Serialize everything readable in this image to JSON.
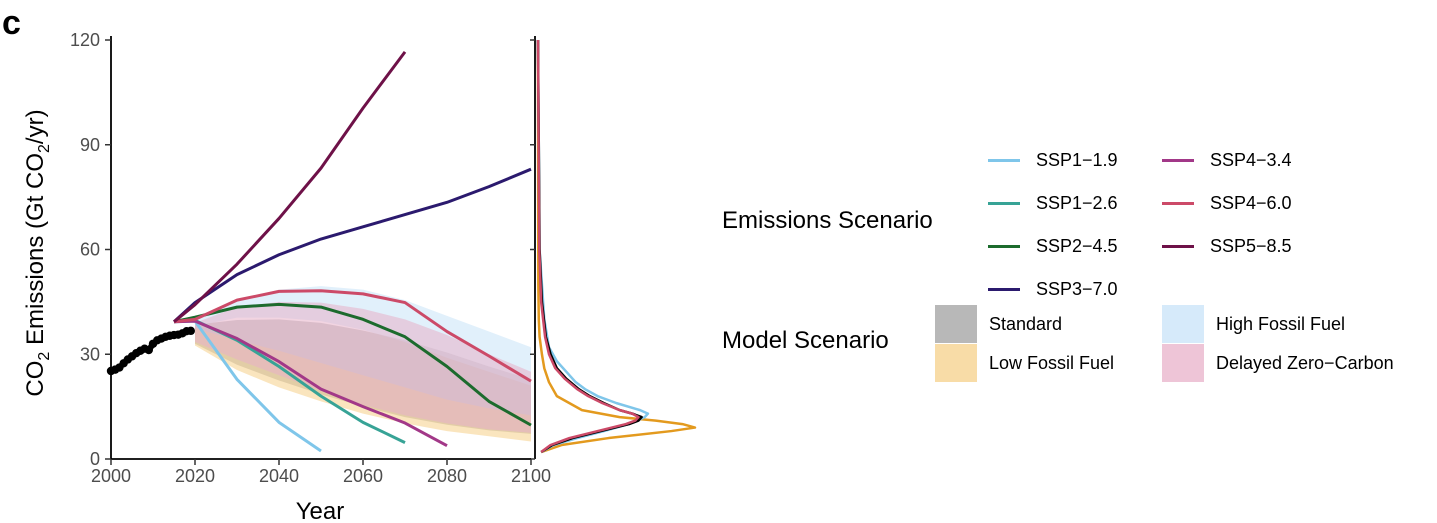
{
  "panel_label": "c",
  "chart_data": {
    "type": "line",
    "title": "",
    "xlabel": "Year",
    "ylabel_main": "CO",
    "ylabel_sub": "2",
    "ylabel_rest": " Emissions (Gt CO",
    "ylabel_unit_sub": "2",
    "ylabel_end": "/yr)",
    "xlim": [
      2000,
      2100
    ],
    "ylim": [
      0,
      120
    ],
    "x_ticks": [
      2000,
      2020,
      2040,
      2060,
      2080,
      2100
    ],
    "y_ticks": [
      0,
      30,
      60,
      90,
      120
    ],
    "grid": false,
    "legend_position": "right",
    "historical": {
      "name": "Historical",
      "color": "#000000",
      "x": [
        2000,
        2001,
        2002,
        2003,
        2004,
        2005,
        2006,
        2007,
        2008,
        2009,
        2010,
        2011,
        2012,
        2013,
        2014,
        2015,
        2016,
        2017,
        2018,
        2019
      ],
      "y": [
        25.2,
        25.6,
        26.2,
        27.4,
        28.5,
        29.4,
        30.3,
        31.0,
        31.6,
        31.2,
        33.0,
        34.0,
        34.5,
        35.0,
        35.3,
        35.5,
        35.6,
        36.0,
        36.6,
        36.7
      ]
    },
    "series": [
      {
        "name": "SSP1−1.9",
        "color": "#7fc6ea",
        "x": [
          2015,
          2020,
          2030,
          2040,
          2050
        ],
        "y": [
          39.3,
          39.5,
          22.8,
          10.5,
          2.3
        ]
      },
      {
        "name": "SSP1−2.6",
        "color": "#37a396",
        "x": [
          2015,
          2020,
          2030,
          2040,
          2050,
          2060,
          2070
        ],
        "y": [
          39.3,
          39.7,
          34.0,
          26.5,
          18.0,
          10.5,
          4.7
        ]
      },
      {
        "name": "SSP2−4.5",
        "color": "#1c6b2d",
        "x": [
          2015,
          2020,
          2030,
          2040,
          2050,
          2060,
          2070,
          2080,
          2090,
          2100
        ],
        "y": [
          39.3,
          40.6,
          43.5,
          44.3,
          43.5,
          40.0,
          35.0,
          26.5,
          16.5,
          9.7
        ]
      },
      {
        "name": "SSP3−7.0",
        "color": "#2b1a6e",
        "x": [
          2015,
          2020,
          2030,
          2040,
          2050,
          2060,
          2070,
          2080,
          2090,
          2100
        ],
        "y": [
          39.3,
          44.8,
          52.8,
          58.5,
          63.0,
          66.5,
          70.0,
          73.5,
          78.0,
          83.0
        ]
      },
      {
        "name": "SSP4−3.4",
        "color": "#a23888",
        "x": [
          2015,
          2020,
          2030,
          2040,
          2050,
          2060,
          2070,
          2080
        ],
        "y": [
          39.3,
          39.5,
          34.5,
          27.9,
          20.0,
          15.0,
          10.3,
          3.8
        ]
      },
      {
        "name": "SSP4−6.0",
        "color": "#cc4a68",
        "x": [
          2015,
          2020,
          2030,
          2040,
          2050,
          2060,
          2070,
          2080,
          2090,
          2100
        ],
        "y": [
          39.3,
          40.0,
          45.5,
          48.0,
          48.2,
          47.3,
          44.8,
          36.5,
          29.5,
          22.3
        ]
      },
      {
        "name": "SSP5−8.5",
        "color": "#6e1148",
        "x": [
          2015,
          2020,
          2030,
          2040,
          2050,
          2060,
          2070
        ],
        "y": [
          39.3,
          44.2,
          55.8,
          68.9,
          83.3,
          100.5,
          116.6
        ]
      }
    ],
    "bands": [
      {
        "name": "Standard",
        "color": "#a0a0a0",
        "x": [
          2020,
          2030,
          2040,
          2050,
          2060,
          2070,
          2080,
          2090,
          2100
        ],
        "lower": [
          33.0,
          27.0,
          22.5,
          18.5,
          15.0,
          12.0,
          9.8,
          8.2,
          7.2
        ],
        "upper": [
          38.5,
          39.8,
          40.0,
          39.0,
          36.8,
          34.0,
          30.5,
          26.5,
          22.8
        ]
      },
      {
        "name": "High Fossil Fuel",
        "color": "#c8e3f8",
        "x": [
          2020,
          2030,
          2040,
          2050,
          2060,
          2070,
          2080,
          2090,
          2100
        ],
        "lower": [
          38.0,
          40.5,
          40.5,
          39.5,
          37.0,
          33.5,
          29.0,
          25.0,
          21.0
        ],
        "upper": [
          39.5,
          45.5,
          48.5,
          49.5,
          48.5,
          45.5,
          41.0,
          36.5,
          32.0
        ]
      },
      {
        "name": "Low Fossil Fuel",
        "color": "#f6d089",
        "x": [
          2020,
          2030,
          2040,
          2050,
          2060,
          2070,
          2080,
          2090,
          2100
        ],
        "lower": [
          32.5,
          25.5,
          20.5,
          16.5,
          13.0,
          10.2,
          8.0,
          6.5,
          5.0
        ],
        "upper": [
          37.5,
          34.0,
          31.0,
          27.5,
          24.0,
          20.5,
          17.0,
          14.5,
          12.5
        ]
      },
      {
        "name": "Delayed Zero−Carbon",
        "color": "#e8b1c9",
        "x": [
          2020,
          2030,
          2040,
          2050,
          2060,
          2070,
          2080,
          2090,
          2100
        ],
        "lower": [
          33.5,
          28.5,
          24.0,
          19.5,
          15.5,
          12.5,
          10.2,
          8.5,
          7.5
        ],
        "upper": [
          39.0,
          43.5,
          45.0,
          44.8,
          43.0,
          40.0,
          35.5,
          30.0,
          25.0
        ]
      }
    ],
    "density_panel": {
      "description": "distribution of 2100 emissions",
      "curves": [
        {
          "name": "Low Fossil Fuel",
          "color": "#e39a1e",
          "y": [
            2,
            4,
            6,
            8,
            9,
            10,
            11,
            12,
            14,
            18,
            22,
            26,
            30,
            35,
            40,
            50,
            120
          ],
          "density": [
            0.02,
            0.15,
            0.45,
            0.85,
            1.0,
            0.92,
            0.75,
            0.52,
            0.28,
            0.12,
            0.07,
            0.04,
            0.025,
            0.01,
            0.005,
            0.002,
            0.0
          ]
        },
        {
          "name": "SSP1−1.9",
          "color": "#7fc6ea",
          "y": [
            2,
            4,
            6,
            8,
            10,
            12,
            13,
            14,
            16,
            18,
            20,
            22,
            25,
            28,
            32,
            40,
            60,
            120
          ],
          "density": [
            0.02,
            0.1,
            0.25,
            0.42,
            0.58,
            0.68,
            0.7,
            0.65,
            0.5,
            0.38,
            0.3,
            0.24,
            0.18,
            0.12,
            0.07,
            0.04,
            0.01,
            0.0
          ]
        },
        {
          "name": "Standard",
          "color": "#000000",
          "y": [
            2,
            4,
            6,
            8,
            10,
            11,
            12,
            13,
            14,
            16,
            18,
            20,
            23,
            26,
            30,
            35,
            45,
            60,
            120
          ],
          "density": [
            0.02,
            0.09,
            0.22,
            0.4,
            0.58,
            0.64,
            0.66,
            0.6,
            0.52,
            0.42,
            0.33,
            0.26,
            0.18,
            0.12,
            0.08,
            0.05,
            0.025,
            0.01,
            0.0
          ]
        },
        {
          "name": "Delayed Zero−Carbon",
          "color": "#cc4a68",
          "y": [
            2,
            4,
            6,
            8,
            10,
            11,
            12,
            13,
            14,
            16,
            18,
            20,
            23,
            26,
            30,
            35,
            45,
            60,
            120
          ],
          "density": [
            0.02,
            0.08,
            0.2,
            0.38,
            0.56,
            0.62,
            0.64,
            0.6,
            0.52,
            0.41,
            0.32,
            0.25,
            0.17,
            0.11,
            0.07,
            0.045,
            0.02,
            0.008,
            0.0
          ]
        }
      ]
    }
  },
  "legend": {
    "emissions_title": "Emissions Scenario",
    "model_title": "Model Scenario",
    "emissions_items": [
      {
        "label": "SSP1−1.9",
        "color": "#7fc6ea"
      },
      {
        "label": "SSP1−2.6",
        "color": "#37a396"
      },
      {
        "label": "SSP2−4.5",
        "color": "#1c6b2d"
      },
      {
        "label": "SSP3−7.0",
        "color": "#2b1a6e"
      },
      {
        "label": "SSP4−3.4",
        "color": "#a23888"
      },
      {
        "label": "SSP4−6.0",
        "color": "#cc4a68"
      },
      {
        "label": "SSP5−8.5",
        "color": "#6e1148"
      }
    ],
    "model_items": [
      {
        "label": "Standard",
        "color": "#a0a0a0"
      },
      {
        "label": "Low Fossil Fuel",
        "color": "#f6d089"
      },
      {
        "label": "High Fossil Fuel",
        "color": "#c8e3f8"
      },
      {
        "label": "Delayed Zero−Carbon",
        "color": "#e8b1c9"
      }
    ]
  }
}
